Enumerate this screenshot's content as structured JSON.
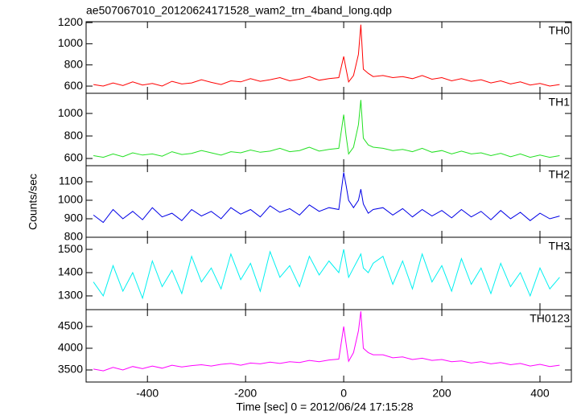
{
  "chart_data": [
    {
      "type": "line",
      "title": "ae507067010_20120624171528_wam2_trn_4band_long.qdp",
      "label": "TH0",
      "color": "#ff0000",
      "x": [
        -510,
        -490,
        -470,
        -450,
        -430,
        -410,
        -390,
        -370,
        -350,
        -330,
        -310,
        -290,
        -270,
        -250,
        -230,
        -210,
        -190,
        -170,
        -150,
        -130,
        -110,
        -90,
        -70,
        -50,
        -30,
        -10,
        0,
        5,
        10,
        20,
        30,
        35,
        40,
        50,
        60,
        80,
        100,
        120,
        140,
        160,
        180,
        200,
        220,
        240,
        260,
        280,
        300,
        320,
        340,
        360,
        380,
        400,
        420,
        440
      ],
      "values": [
        615,
        600,
        630,
        605,
        640,
        610,
        625,
        600,
        645,
        620,
        630,
        660,
        635,
        615,
        650,
        640,
        670,
        645,
        660,
        680,
        650,
        665,
        690,
        655,
        670,
        680,
        880,
        760,
        640,
        700,
        900,
        1180,
        760,
        720,
        690,
        700,
        680,
        690,
        670,
        700,
        665,
        680,
        650,
        670,
        645,
        660,
        630,
        650,
        620,
        640,
        610,
        625,
        600,
        615
      ],
      "xlim": [
        -525,
        464
      ],
      "ylim": [
        532,
        1208
      ],
      "yticks": [
        600,
        800,
        1000,
        1200
      ]
    },
    {
      "type": "line",
      "label": "TH1",
      "color": "#22e022",
      "x": [
        -510,
        -490,
        -470,
        -450,
        -430,
        -410,
        -390,
        -370,
        -350,
        -330,
        -310,
        -290,
        -270,
        -250,
        -230,
        -210,
        -190,
        -170,
        -150,
        -130,
        -110,
        -90,
        -70,
        -50,
        -30,
        -10,
        0,
        5,
        10,
        20,
        30,
        35,
        40,
        50,
        60,
        80,
        100,
        120,
        140,
        160,
        180,
        200,
        220,
        240,
        260,
        280,
        300,
        320,
        340,
        360,
        380,
        400,
        420,
        440
      ],
      "values": [
        625,
        610,
        640,
        615,
        650,
        630,
        640,
        620,
        660,
        635,
        645,
        670,
        650,
        630,
        660,
        650,
        675,
        655,
        665,
        690,
        660,
        670,
        700,
        665,
        680,
        690,
        990,
        800,
        640,
        700,
        900,
        1120,
        780,
        720,
        700,
        690,
        670,
        680,
        660,
        690,
        655,
        670,
        640,
        665,
        640,
        650,
        625,
        645,
        615,
        640,
        610,
        630,
        610,
        625
      ],
      "xlim": [
        -525,
        464
      ],
      "ylim": [
        536,
        1179
      ],
      "yticks": [
        600,
        800,
        1000
      ]
    },
    {
      "type": "line",
      "label": "TH2",
      "color": "#0000e6",
      "ylabel": "Counts/sec",
      "x": [
        -510,
        -490,
        -470,
        -450,
        -430,
        -410,
        -390,
        -370,
        -350,
        -330,
        -310,
        -290,
        -270,
        -250,
        -230,
        -210,
        -190,
        -170,
        -150,
        -130,
        -110,
        -90,
        -70,
        -50,
        -30,
        -10,
        0,
        5,
        10,
        20,
        30,
        35,
        40,
        50,
        60,
        80,
        100,
        120,
        140,
        160,
        180,
        200,
        220,
        240,
        260,
        280,
        300,
        320,
        340,
        360,
        380,
        400,
        420,
        440
      ],
      "values": [
        920,
        880,
        950,
        900,
        940,
        895,
        960,
        910,
        930,
        890,
        950,
        915,
        940,
        900,
        960,
        925,
        950,
        910,
        970,
        935,
        955,
        920,
        975,
        940,
        960,
        950,
        1150,
        1080,
        1000,
        960,
        1000,
        1060,
        980,
        930,
        950,
        960,
        920,
        955,
        910,
        950,
        915,
        945,
        905,
        950,
        910,
        940,
        895,
        945,
        900,
        935,
        890,
        930,
        900,
        915
      ],
      "xlim": [
        -525,
        464
      ],
      "ylim": [
        800,
        1187
      ],
      "yticks": [
        800,
        900,
        1000,
        1100
      ]
    },
    {
      "type": "line",
      "label": "TH3",
      "color": "#00f0f0",
      "x": [
        -510,
        -490,
        -470,
        -450,
        -430,
        -410,
        -390,
        -370,
        -350,
        -330,
        -310,
        -290,
        -270,
        -250,
        -230,
        -210,
        -190,
        -170,
        -150,
        -130,
        -110,
        -90,
        -70,
        -50,
        -30,
        -10,
        0,
        5,
        10,
        20,
        30,
        35,
        40,
        50,
        60,
        80,
        100,
        120,
        140,
        160,
        180,
        200,
        220,
        240,
        260,
        280,
        300,
        320,
        340,
        360,
        380,
        400,
        420,
        440
      ],
      "values": [
        1360,
        1300,
        1430,
        1320,
        1400,
        1290,
        1450,
        1340,
        1410,
        1310,
        1470,
        1360,
        1420,
        1330,
        1480,
        1370,
        1440,
        1320,
        1490,
        1380,
        1430,
        1340,
        1470,
        1390,
        1450,
        1400,
        1500,
        1440,
        1380,
        1420,
        1460,
        1480,
        1420,
        1400,
        1440,
        1470,
        1350,
        1450,
        1330,
        1480,
        1360,
        1430,
        1320,
        1460,
        1350,
        1420,
        1310,
        1440,
        1340,
        1400,
        1300,
        1420,
        1330,
        1380
      ],
      "xlim": [
        -525,
        464
      ],
      "ylim": [
        1241,
        1552
      ],
      "yticks": [
        1300,
        1400,
        1500
      ]
    },
    {
      "type": "line",
      "label": "TH0123",
      "color": "#ff00ff",
      "xlabel": "Time [sec] 0 = 2012/06/24 17:15:28",
      "x": [
        -510,
        -490,
        -470,
        -450,
        -430,
        -410,
        -390,
        -370,
        -350,
        -330,
        -310,
        -290,
        -270,
        -250,
        -230,
        -210,
        -190,
        -170,
        -150,
        -130,
        -110,
        -90,
        -70,
        -50,
        -30,
        -10,
        0,
        5,
        10,
        20,
        30,
        35,
        40,
        50,
        60,
        80,
        100,
        120,
        140,
        160,
        180,
        200,
        220,
        240,
        260,
        280,
        300,
        320,
        340,
        360,
        380,
        400,
        420,
        440
      ],
      "values": [
        3520,
        3480,
        3560,
        3500,
        3580,
        3530,
        3590,
        3540,
        3610,
        3570,
        3600,
        3620,
        3590,
        3630,
        3650,
        3610,
        3660,
        3640,
        3680,
        3650,
        3690,
        3670,
        3720,
        3690,
        3730,
        3750,
        4500,
        4100,
        3700,
        3900,
        4400,
        4850,
        4000,
        3900,
        3850,
        3850,
        3780,
        3800,
        3740,
        3770,
        3720,
        3740,
        3690,
        3710,
        3660,
        3690,
        3640,
        3670,
        3620,
        3650,
        3590,
        3630,
        3580,
        3610
      ],
      "xlim": [
        -525,
        464
      ],
      "ylim": [
        3222,
        4889
      ],
      "yticks": [
        3500,
        4000,
        4500
      ],
      "xticks": [
        -400,
        -200,
        0,
        200,
        400
      ]
    }
  ]
}
